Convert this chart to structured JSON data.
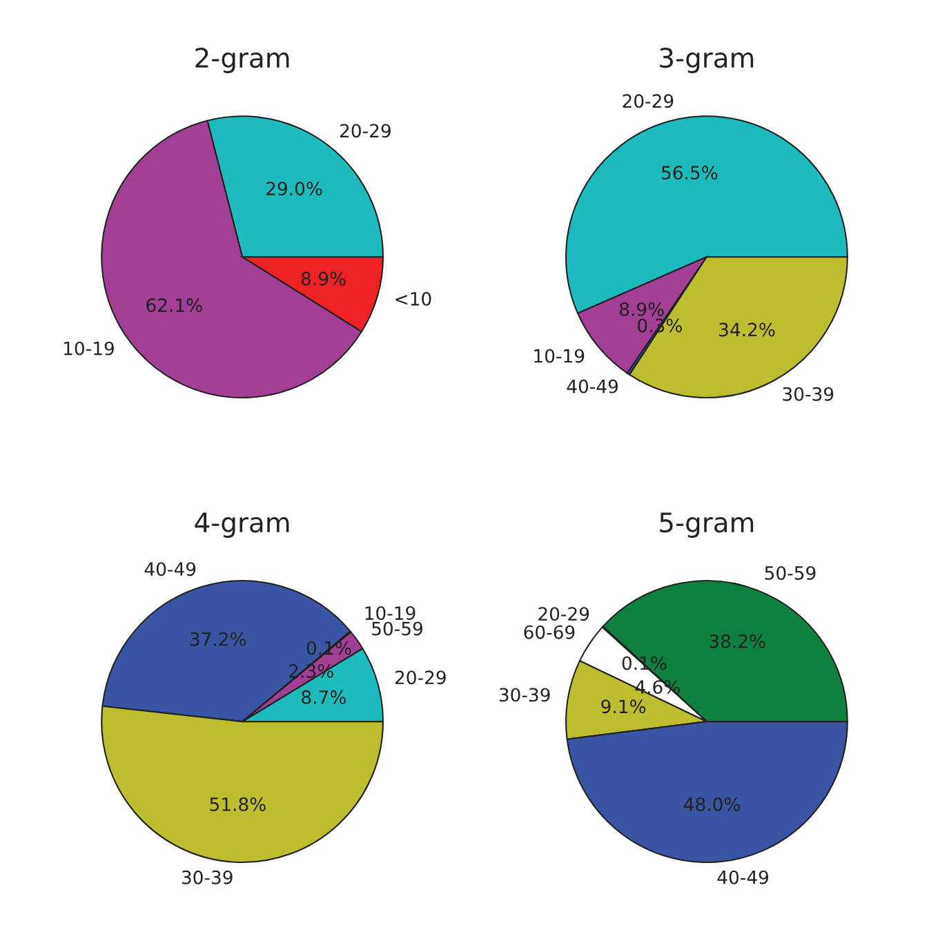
{
  "chart_data": [
    {
      "type": "pie",
      "title": "2-gram",
      "categories": [
        "20-29",
        "10-19",
        "<10"
      ],
      "values": [
        29.0,
        62.1,
        8.9
      ],
      "value_labels": [
        "29.0%",
        "62.1%",
        "8.9%"
      ],
      "colors": [
        "#1dbbbd",
        "#a33f94",
        "#ee2424"
      ]
    },
    {
      "type": "pie",
      "title": "3-gram",
      "categories": [
        "20-29",
        "10-19",
        "40-49",
        "30-39"
      ],
      "values": [
        56.5,
        8.9,
        0.3,
        34.2
      ],
      "value_labels": [
        "56.5%",
        "8.9%",
        "0.3%",
        "34.2%"
      ],
      "colors": [
        "#1dbbbd",
        "#a33f94",
        "#3a55a4",
        "#bdbd30"
      ]
    },
    {
      "type": "pie",
      "title": "4-gram",
      "categories": [
        "20-29",
        "50-59",
        "10-19",
        "40-49",
        "30-39"
      ],
      "values": [
        8.7,
        2.3,
        0.1,
        37.2,
        51.8
      ],
      "value_labels": [
        "8.7%",
        "2.3%",
        "0.1%",
        "37.2%",
        "51.8%"
      ],
      "colors": [
        "#1dbbbd",
        "#a33f94",
        "#a33f94",
        "#3a55a4",
        "#bdbd30"
      ]
    },
    {
      "type": "pie",
      "title": "5-gram",
      "categories": [
        "50-59",
        "20-29",
        "60-69",
        "30-39",
        "40-49"
      ],
      "values": [
        38.2,
        0.1,
        4.6,
        9.1,
        48.0
      ],
      "value_labels": [
        "38.2%",
        "0.1%",
        "4.6%",
        "9.1%",
        "48.0%"
      ],
      "colors": [
        "#0f8040",
        "#1dbbbd",
        "#ffffff",
        "#bdbd30",
        "#3a55a4"
      ]
    }
  ]
}
